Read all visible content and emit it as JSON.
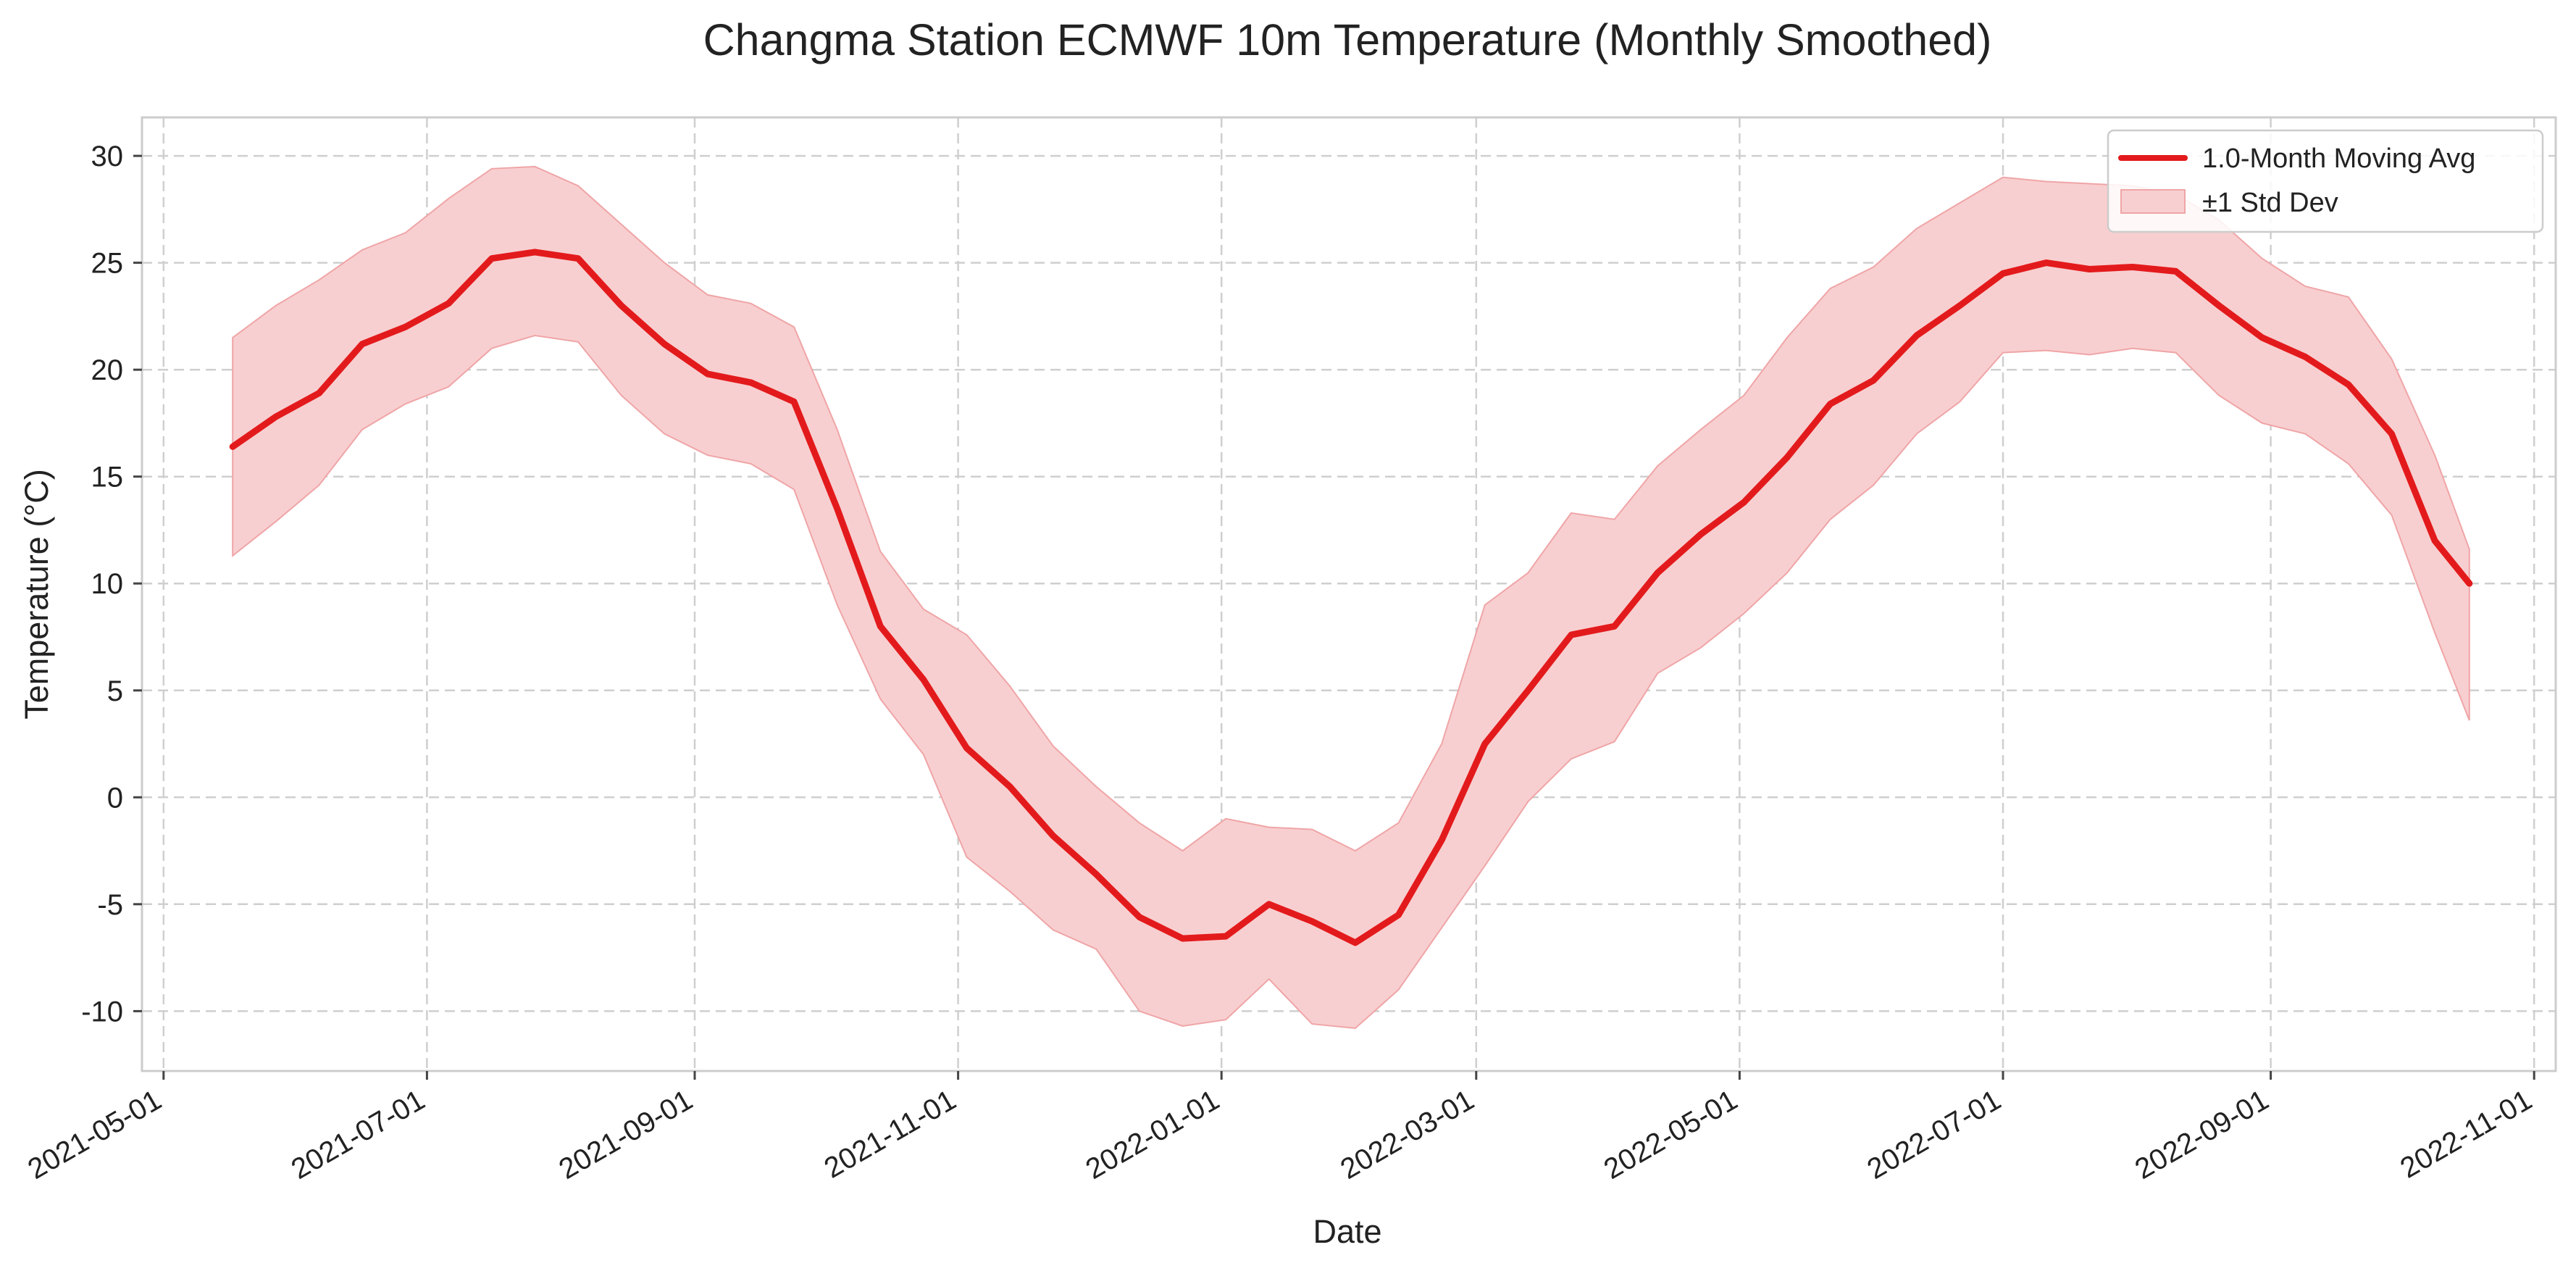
{
  "chart_data": {
    "type": "line",
    "title": "Changma Station ECMWF 10m Temperature (Monthly Smoothed)",
    "xlabel": "Date",
    "ylabel": "Temperature (°C)",
    "xlim": [
      "2021-04-26",
      "2022-11-06"
    ],
    "ylim": [
      -12.8,
      31.8
    ],
    "grid": true,
    "legend_position": "top-right",
    "x_ticks": [
      "2021-05-01",
      "2021-07-01",
      "2021-09-01",
      "2021-11-01",
      "2022-01-01",
      "2022-03-01",
      "2022-05-01",
      "2022-07-01",
      "2022-09-01",
      "2022-11-01"
    ],
    "y_ticks": [
      30,
      25,
      20,
      15,
      10,
      5,
      0,
      -5,
      -10
    ],
    "colors": {
      "line": "#e31a1c",
      "band_fill": "#f8cfd0",
      "band_edge": "#efa5a7"
    },
    "series": [
      {
        "name": "1.0-Month Moving Avg",
        "x": [
          "2021-05-17",
          "2021-05-27",
          "2021-06-06",
          "2021-06-16",
          "2021-06-26",
          "2021-07-06",
          "2021-07-16",
          "2021-07-26",
          "2021-08-05",
          "2021-08-15",
          "2021-08-25",
          "2021-09-04",
          "2021-09-14",
          "2021-09-24",
          "2021-10-04",
          "2021-10-14",
          "2021-10-24",
          "2021-11-03",
          "2021-11-13",
          "2021-11-23",
          "2021-12-03",
          "2021-12-13",
          "2021-12-23",
          "2022-01-02",
          "2022-01-12",
          "2022-01-22",
          "2022-02-01",
          "2022-02-11",
          "2022-02-21",
          "2022-03-03",
          "2022-03-13",
          "2022-03-23",
          "2022-04-02",
          "2022-04-12",
          "2022-04-22",
          "2022-05-02",
          "2022-05-12",
          "2022-05-22",
          "2022-06-01",
          "2022-06-11",
          "2022-06-21",
          "2022-07-01",
          "2022-07-11",
          "2022-07-21",
          "2022-07-31",
          "2022-08-10",
          "2022-08-20",
          "2022-08-30",
          "2022-09-09",
          "2022-09-19",
          "2022-09-29",
          "2022-10-09",
          "2022-10-17"
        ],
        "values": [
          16.4,
          17.8,
          18.9,
          21.2,
          22.0,
          23.1,
          25.2,
          25.5,
          25.2,
          23.0,
          21.2,
          19.8,
          19.4,
          18.5,
          13.5,
          8.0,
          5.5,
          2.3,
          0.5,
          -1.8,
          -3.6,
          -5.6,
          -6.6,
          -6.5,
          -5.0,
          -5.8,
          -6.8,
          -5.5,
          -2.0,
          2.5,
          5.0,
          7.6,
          8.0,
          10.5,
          12.3,
          13.8,
          15.9,
          18.4,
          19.5,
          21.6,
          23.0,
          24.5,
          25.0,
          24.7,
          24.8,
          24.6,
          23.0,
          21.5,
          20.6,
          19.3,
          17.0,
          12.0,
          10.0
        ]
      },
      {
        "name": "±1 Std Dev",
        "band": "±1 Std Dev",
        "x": [
          "2021-05-17",
          "2021-05-27",
          "2021-06-06",
          "2021-06-16",
          "2021-06-26",
          "2021-07-06",
          "2021-07-16",
          "2021-07-26",
          "2021-08-05",
          "2021-08-15",
          "2021-08-25",
          "2021-09-04",
          "2021-09-14",
          "2021-09-24",
          "2021-10-04",
          "2021-10-14",
          "2021-10-24",
          "2021-11-03",
          "2021-11-13",
          "2021-11-23",
          "2021-12-03",
          "2021-12-13",
          "2021-12-23",
          "2022-01-02",
          "2022-01-12",
          "2022-01-22",
          "2022-02-01",
          "2022-02-11",
          "2022-02-21",
          "2022-03-03",
          "2022-03-13",
          "2022-03-23",
          "2022-04-02",
          "2022-04-12",
          "2022-04-22",
          "2022-05-02",
          "2022-05-12",
          "2022-05-22",
          "2022-06-01",
          "2022-06-11",
          "2022-06-21",
          "2022-07-01",
          "2022-07-11",
          "2022-07-21",
          "2022-07-31",
          "2022-08-10",
          "2022-08-20",
          "2022-08-30",
          "2022-09-09",
          "2022-09-19",
          "2022-09-29",
          "2022-10-09",
          "2022-10-17"
        ],
        "upper": [
          21.5,
          23.0,
          24.2,
          25.6,
          26.4,
          28.0,
          29.4,
          29.5,
          28.6,
          26.8,
          25.0,
          23.5,
          23.1,
          22.0,
          17.2,
          11.5,
          8.8,
          7.6,
          5.2,
          2.4,
          0.5,
          -1.2,
          -2.5,
          -1.0,
          -1.4,
          -1.5,
          -2.5,
          -1.2,
          2.5,
          9.0,
          10.5,
          13.3,
          13.0,
          15.5,
          17.2,
          18.8,
          21.5,
          23.8,
          24.8,
          26.6,
          27.8,
          29.0,
          28.8,
          28.7,
          28.6,
          28.2,
          27.0,
          25.2,
          23.9,
          23.4,
          20.5,
          16.0,
          11.6
        ],
        "lower": [
          11.3,
          12.9,
          14.6,
          17.2,
          18.4,
          19.2,
          21.0,
          21.6,
          21.3,
          18.8,
          17.0,
          16.0,
          15.6,
          14.4,
          9.0,
          4.6,
          2.0,
          -2.8,
          -4.4,
          -6.2,
          -7.1,
          -10.0,
          -10.7,
          -10.4,
          -8.5,
          -10.6,
          -10.8,
          -9.0,
          -6.1,
          -3.2,
          -0.2,
          1.8,
          2.6,
          5.8,
          7.0,
          8.6,
          10.5,
          13.0,
          14.6,
          17.0,
          18.5,
          20.8,
          20.9,
          20.7,
          21.0,
          20.8,
          18.8,
          17.5,
          17.0,
          15.6,
          13.2,
          7.7,
          3.6
        ]
      }
    ]
  }
}
